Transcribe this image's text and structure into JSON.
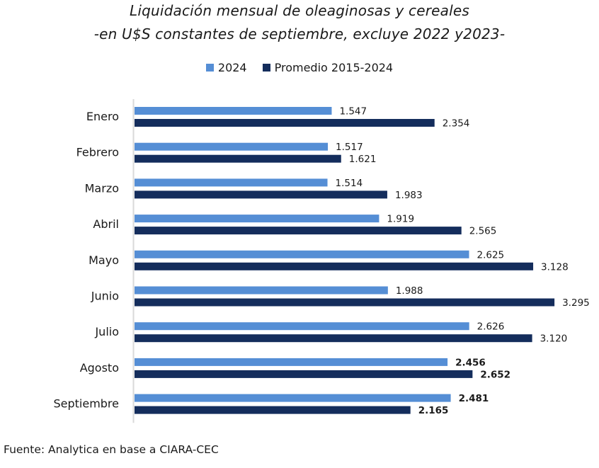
{
  "chart_data": {
    "type": "bar",
    "orientation": "horizontal",
    "title": "Liquidación mensual de oleaginosas y cereales",
    "subtitle": "-en U$S constantes de septiembre, excluye 2022 y2023-",
    "xlabel": "",
    "ylabel": "",
    "categories": [
      "Enero",
      "Febrero",
      "Marzo",
      "Abril",
      "Mayo",
      "Junio",
      "Julio",
      "Agosto",
      "Septiembre"
    ],
    "series": [
      {
        "name": "2024",
        "color": "#558ed5",
        "values": [
          1.547,
          1.517,
          1.514,
          1.919,
          2.625,
          1.988,
          2.626,
          2.456,
          2.481
        ],
        "labels": [
          "1.547",
          "1.517",
          "1.514",
          "1.919",
          "2.625",
          "1.988",
          "2.626",
          "2.456",
          "2.481"
        ]
      },
      {
        "name": "Promedio 2015-2024",
        "color": "#142d5c",
        "values": [
          2.354,
          1.621,
          1.983,
          2.565,
          3.128,
          3.295,
          3.12,
          2.652,
          2.165
        ],
        "labels": [
          "2.354",
          "1.621",
          "1.983",
          "2.565",
          "3.128",
          "3.295",
          "3.120",
          "2.652",
          "2.165"
        ]
      }
    ],
    "bold_label_categories": [
      "Agosto",
      "Septiembre"
    ],
    "xlim": [
      0,
      3.3
    ],
    "grid": false,
    "legend_position": "top-center",
    "source": "Fuente: Analytica en base a CIARA-CEC"
  }
}
